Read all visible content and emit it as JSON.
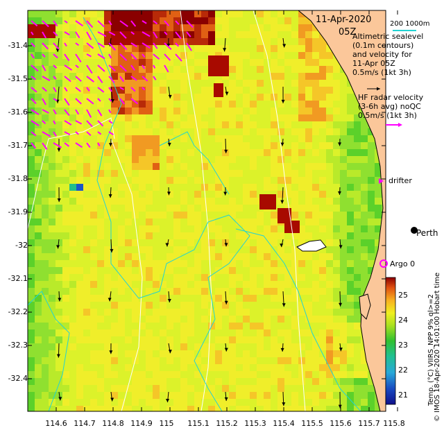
{
  "map": {
    "date": "11-Apr-2020",
    "time": "05Z",
    "scale_text": "200  1000m",
    "altimetry_lines": [
      "Altimetric sealevel",
      "(0.1m contours)",
      "and velocity for",
      "11-Apr 05Z",
      "0.5m/s (1kt 3h)"
    ],
    "hf_lines": [
      "HF radar velocity",
      "(3-6h avg) noQC",
      "0.5m/s (1kt 3h)"
    ],
    "drifter_label": "drifter",
    "city_label": "Perth",
    "argo_label": "Argo 0",
    "colorbar_title": "Temp. (°C) VIIRS_NPP 9% ql>=2",
    "credit": "© IMOS 18-Apr-2020 14:01:00 Hobart time",
    "lat_ticks": [
      "-31.4",
      "-31.5",
      "-31.6",
      "-31.7",
      "-31.8",
      "-31.9",
      "-32",
      "-32.1",
      "-32.2",
      "-32.3",
      "-32.4"
    ],
    "lon_ticks": [
      "114.6",
      "114.7",
      "114.8",
      "114.9",
      "115",
      "115.1",
      "115.2",
      "115.3",
      "115.4",
      "115.5",
      "115.6",
      "115.7",
      "115.8"
    ],
    "colorbar_ticks": [
      "25",
      "24",
      "23",
      "22",
      "21"
    ],
    "colors": {
      "land": "#fbc79a",
      "hf_arrow": "#ff00ff",
      "contour": "#22d3d3",
      "isobath": "#ffffff",
      "coast": "#000000"
    }
  }
}
